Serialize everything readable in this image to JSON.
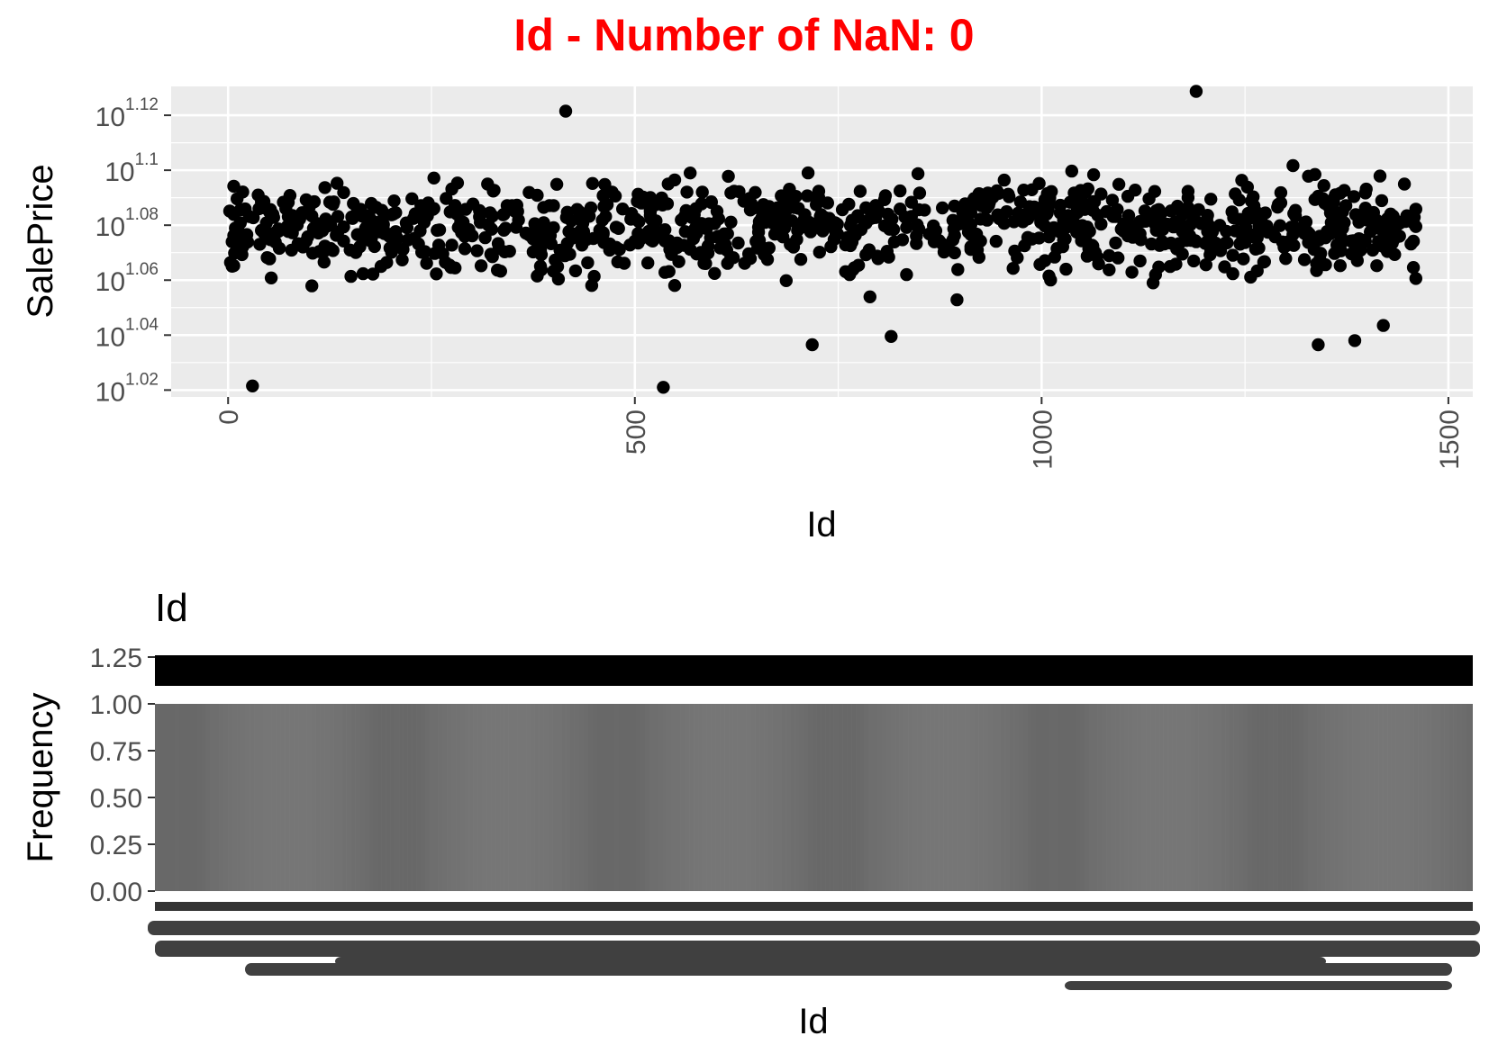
{
  "figure_title": "Id - Number of NaN: 0",
  "chart_data": [
    {
      "type": "scatter",
      "title": "",
      "xlabel": "Id",
      "ylabel": "SalePrice",
      "x_scale": "linear",
      "y_scale": "log10 of log10 SalePrice (tick labels are powers of 10)",
      "xlim": [
        -70,
        1530
      ],
      "x_ticks": [
        0,
        500,
        1000,
        1500
      ],
      "x_tick_labels": [
        "0",
        "500",
        "1000",
        "1500"
      ],
      "ylim_exponent": [
        1.0175,
        1.1305
      ],
      "y_ticks_exponent": [
        1.02,
        1.04,
        1.06,
        1.08,
        1.1,
        1.12
      ],
      "y_tick_bases": [
        "10",
        "10",
        "10",
        "10",
        "10",
        "10"
      ],
      "y_tick_exponents": [
        "1.02",
        "1.04",
        "1.06",
        "1.08",
        "1.1",
        "1.12"
      ],
      "grid": true,
      "point_color": "#000000",
      "point_count_approx": 1000,
      "points_note_sampled": false
    },
    {
      "type": "bar",
      "title": "Id",
      "xlabel": "Id",
      "ylabel": "Frequency",
      "n_categories": 1460,
      "categories_range": [
        1,
        1460
      ],
      "value_per_category": 1,
      "ylim": [
        0,
        1.25
      ],
      "y_ticks": [
        0.0,
        0.25,
        0.5,
        0.75,
        1.0,
        1.25
      ],
      "y_tick_labels": [
        "0.00",
        "0.25",
        "0.50",
        "0.75",
        "1.00",
        "1.25"
      ],
      "x_tick_labels_overlapping": true,
      "bar_color": "#595959",
      "grid": false
    }
  ]
}
